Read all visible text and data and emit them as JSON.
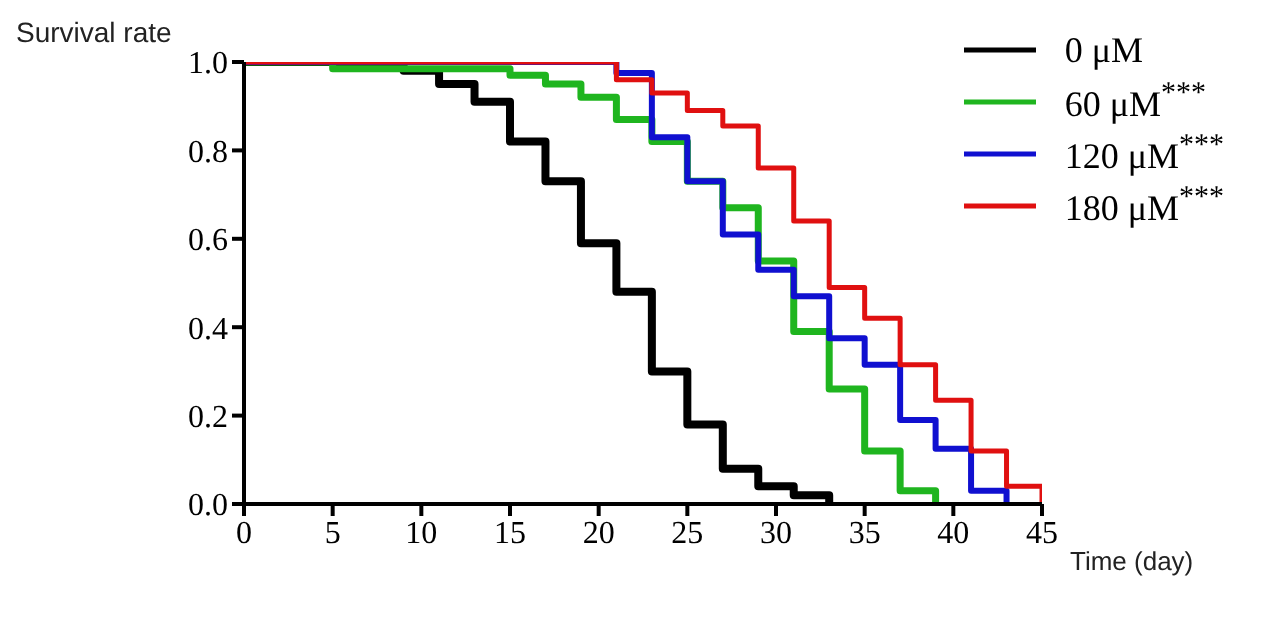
{
  "chart_data": {
    "type": "step",
    "ylabel": "Survival rate",
    "xlabel": "Time (day)",
    "xlim": [
      0,
      45
    ],
    "xticks": [
      0,
      5,
      10,
      15,
      20,
      25,
      30,
      35,
      40,
      45
    ],
    "ylim": [
      0,
      1
    ],
    "yticks": [
      {
        "value": 0,
        "label": "0.0"
      },
      {
        "value": 0.2,
        "label": "0.2"
      },
      {
        "value": 0.4,
        "label": "0.4"
      },
      {
        "value": 0.6,
        "label": "0.6"
      },
      {
        "value": 0.8,
        "label": "0.8"
      },
      {
        "value": 1,
        "label": "1.0"
      }
    ],
    "grid": false,
    "legend": "top right",
    "marker": "none",
    "line_style": "solid",
    "series": [
      {
        "name": "0 μM",
        "color": "#000000",
        "x": [
          0,
          9,
          11,
          13,
          15,
          17,
          19,
          21,
          23,
          25,
          27,
          29,
          31,
          33
        ],
        "values": [
          1,
          0.98,
          0.95,
          0.91,
          0.82,
          0.73,
          0.59,
          0.48,
          0.3,
          0.18,
          0.08,
          0.04,
          0.02,
          0
        ]
      },
      {
        "name": "60 μM$^{***}$",
        "color": "#1fb51f",
        "x": [
          0,
          5,
          15,
          17,
          19,
          21,
          23,
          25,
          27,
          29,
          31,
          33,
          35,
          37,
          39
        ],
        "values": [
          1,
          0.985,
          0.97,
          0.95,
          0.92,
          0.87,
          0.82,
          0.73,
          0.67,
          0.55,
          0.39,
          0.26,
          0.12,
          0.03,
          0
        ]
      },
      {
        "name": "120 μM$^{***}$",
        "color": "#1010d0",
        "x": [
          0,
          21,
          23,
          25,
          27,
          29,
          31,
          33,
          35,
          37,
          39,
          41,
          43
        ],
        "values": [
          1,
          0.975,
          0.83,
          0.73,
          0.61,
          0.53,
          0.47,
          0.375,
          0.315,
          0.19,
          0.125,
          0.03,
          0
        ]
      },
      {
        "name": "180 μM$^{***}$",
        "color": "#e01010",
        "x": [
          0,
          21,
          23,
          25,
          27,
          29,
          31,
          33,
          35,
          37,
          39,
          41,
          43,
          45
        ],
        "values": [
          1,
          0.96,
          0.93,
          0.89,
          0.855,
          0.76,
          0.64,
          0.49,
          0.42,
          0.315,
          0.235,
          0.12,
          0.04,
          0
        ]
      }
    ]
  }
}
